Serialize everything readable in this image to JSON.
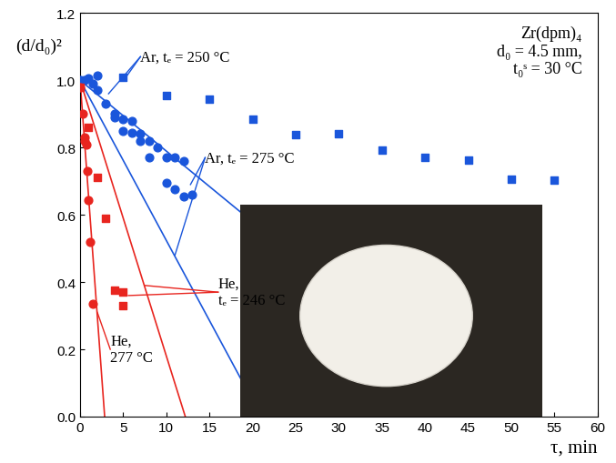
{
  "chart_data": {
    "type": "scatter",
    "x_label": "τ, min",
    "y_label": "(d/d₀)²",
    "annotation": "Zr(dpm)₄\nd₀ = 4.5 mm,\nt₀ˢ = 30 °C",
    "xlim": [
      0,
      60
    ],
    "xticks": [
      0,
      5,
      10,
      15,
      20,
      25,
      30,
      35,
      40,
      45,
      50,
      55,
      60
    ],
    "ylim": [
      0.0,
      1.2
    ],
    "yticks": [
      0.0,
      0.2,
      0.4,
      0.6,
      0.8,
      1.0,
      1.2
    ],
    "grid": false,
    "series": [
      {
        "name": "Ar, tₑ = 250 °C",
        "color": "#1a56db",
        "marker": "square",
        "x": [
          0,
          5,
          10,
          15,
          20,
          25,
          30,
          35,
          40,
          45,
          50,
          55
        ],
        "values": [
          1.0,
          1.01,
          0.955,
          0.945,
          0.885,
          0.838,
          0.842,
          0.793,
          0.772,
          0.762,
          0.706,
          0.702
        ],
        "fit_x": [
          0,
          47.5
        ],
        "fit_values": [
          1.0,
          0.0
        ]
      },
      {
        "name": "Ar, tₑ = 275 °C",
        "color": "#1a56db",
        "marker": "circle",
        "x": [
          0,
          0.5,
          1,
          1.5,
          2,
          2,
          3,
          4,
          4,
          5,
          5,
          6,
          6,
          7,
          7,
          8,
          8,
          9,
          10,
          10,
          11,
          11,
          12,
          12,
          13
        ],
        "values": [
          1.0,
          1.0,
          1.005,
          0.99,
          1.015,
          0.97,
          0.93,
          0.9,
          0.89,
          0.885,
          0.85,
          0.88,
          0.845,
          0.84,
          0.82,
          0.82,
          0.77,
          0.8,
          0.77,
          0.695,
          0.77,
          0.675,
          0.76,
          0.655,
          0.66
        ],
        "fit_x": [
          0,
          21
        ],
        "fit_values": [
          1.0,
          0.0
        ]
      },
      {
        "name": "He,\ntₑ = 246 °C",
        "color": "#e8251f",
        "marker": "square",
        "x": [
          0,
          1,
          2,
          3,
          4,
          5,
          5
        ],
        "values": [
          0.98,
          0.86,
          0.71,
          0.59,
          0.375,
          0.37,
          0.33
        ],
        "fit_x": [
          0,
          12.2
        ],
        "fit_values": [
          1.0,
          0.0
        ]
      },
      {
        "name": "He,\n277 °C",
        "color": "#e8251f",
        "marker": "circle",
        "x": [
          0,
          0.3,
          0.5,
          0.5,
          0.7,
          0.8,
          1.0,
          1.2,
          1.5
        ],
        "values": [
          0.98,
          0.9,
          0.83,
          0.82,
          0.81,
          0.73,
          0.645,
          0.52,
          0.335
        ],
        "fit_x": [
          0,
          2.85
        ],
        "fit_values": [
          1.0,
          0.0
        ]
      }
    ]
  }
}
